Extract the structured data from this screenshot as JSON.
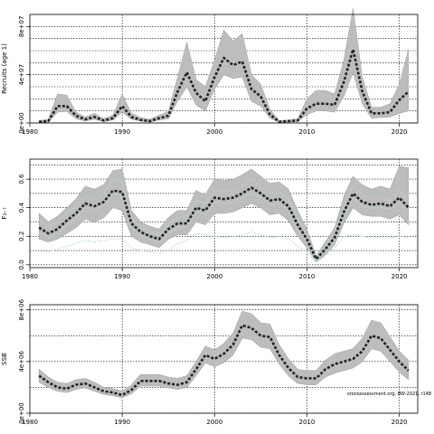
{
  "chart_data": [
    {
      "type": "line",
      "ylabel": "Recruits (age 1)",
      "xlim": [
        1980,
        2022
      ],
      "ylim": [
        0,
        90000000
      ],
      "x_ticks": [
        1980,
        1990,
        2000,
        2010,
        2020
      ],
      "y_ticks": [
        {
          "value": 0,
          "label": "0e+00"
        },
        {
          "value": 40000000,
          "label": "4e+07"
        },
        {
          "value": 80000000,
          "label": "8e+07"
        }
      ],
      "y_gridlines": [
        0,
        10000000,
        20000000,
        30000000,
        40000000,
        50000000,
        60000000,
        70000000,
        80000000
      ],
      "x_gridlines": [
        1990,
        2000,
        2010,
        2020
      ],
      "grid": true,
      "x": [
        1981,
        1982,
        1983,
        1984,
        1985,
        1986,
        1987,
        1988,
        1989,
        1990,
        1991,
        1992,
        1993,
        1994,
        1995,
        1996,
        1997,
        1998,
        1999,
        2000,
        2001,
        2002,
        2003,
        2004,
        2005,
        2006,
        2007,
        2008,
        2009,
        2010,
        2011,
        2012,
        2013,
        2014,
        2015,
        2016,
        2017,
        2018,
        2019,
        2020,
        2021
      ],
      "series": [
        {
          "role": "estimate",
          "values": [
            1000000,
            1500000,
            14000000,
            14000000,
            6000000,
            3000000,
            5000000,
            2000000,
            4000000,
            14000000,
            5000000,
            2500000,
            1500000,
            4000000,
            6000000,
            26000000,
            42000000,
            25000000,
            18000000,
            38000000,
            54000000,
            48000000,
            51000000,
            28000000,
            22000000,
            7000000,
            1000000,
            1500000,
            2000000,
            12000000,
            16000000,
            16000000,
            15000000,
            34000000,
            61000000,
            26000000,
            8000000,
            8000000,
            9000000,
            19000000,
            26000000
          ]
        },
        {
          "role": "lower",
          "values": [
            500000,
            800000,
            9000000,
            9500000,
            3500000,
            1500000,
            3000000,
            1000000,
            2500000,
            9000000,
            3000000,
            1500000,
            800000,
            2500000,
            3500000,
            18000000,
            30000000,
            15000000,
            10000000,
            28000000,
            40000000,
            37000000,
            38000000,
            18000000,
            14000000,
            4000000,
            500000,
            800000,
            1000000,
            7000000,
            10000000,
            10000000,
            9000000,
            22000000,
            42000000,
            16000000,
            4000000,
            4500000,
            5000000,
            8000000,
            10000000
          ]
        },
        {
          "role": "upper",
          "values": [
            2000000,
            3000000,
            24000000,
            23000000,
            9000000,
            5000000,
            8000000,
            3500000,
            6500000,
            24000000,
            8000000,
            4500000,
            3000000,
            6500000,
            9500000,
            38000000,
            67000000,
            36000000,
            30000000,
            52000000,
            77000000,
            68000000,
            74000000,
            40000000,
            32000000,
            11000000,
            2000000,
            2500000,
            3500000,
            20000000,
            27000000,
            27000000,
            24000000,
            52000000,
            95000000,
            38000000,
            13000000,
            13000000,
            16000000,
            32000000,
            61000000
          ]
        }
      ]
    },
    {
      "type": "line",
      "ylabel": "F₃₋₇",
      "xlim": [
        1980,
        2022
      ],
      "ylim": [
        -0.02,
        0.74
      ],
      "x_ticks": [
        1980,
        1990,
        2000,
        2010,
        2020
      ],
      "y_ticks": [
        {
          "value": 0.0,
          "label": "0.0"
        },
        {
          "value": 0.2,
          "label": "0.2"
        },
        {
          "value": 0.4,
          "label": "0.4"
        },
        {
          "value": 0.6,
          "label": "0.6"
        }
      ],
      "y_gridlines": [
        0.0,
        0.1,
        0.2,
        0.3,
        0.4,
        0.5,
        0.6,
        0.7
      ],
      "x_gridlines": [
        1990,
        2000,
        2010,
        2020
      ],
      "grid": true,
      "x": [
        1981,
        1982,
        1983,
        1984,
        1985,
        1986,
        1987,
        1988,
        1989,
        1990,
        1991,
        1992,
        1993,
        1994,
        1995,
        1996,
        1997,
        1998,
        1999,
        2000,
        2001,
        2002,
        2003,
        2004,
        2005,
        2006,
        2007,
        2008,
        2009,
        2010,
        2011,
        2012,
        2013,
        2014,
        2015,
        2016,
        2017,
        2018,
        2019,
        2020,
        2021
      ],
      "series": [
        {
          "role": "estimate",
          "values": [
            0.26,
            0.22,
            0.25,
            0.31,
            0.36,
            0.43,
            0.41,
            0.44,
            0.52,
            0.51,
            0.29,
            0.23,
            0.2,
            0.18,
            0.25,
            0.29,
            0.29,
            0.4,
            0.38,
            0.47,
            0.46,
            0.47,
            0.5,
            0.54,
            0.5,
            0.45,
            0.46,
            0.41,
            0.28,
            0.18,
            0.04,
            0.11,
            0.19,
            0.37,
            0.5,
            0.44,
            0.42,
            0.43,
            0.41,
            0.47,
            0.4
          ]
        },
        {
          "role": "lower",
          "values": [
            0.18,
            0.16,
            0.18,
            0.22,
            0.26,
            0.32,
            0.3,
            0.33,
            0.4,
            0.38,
            0.2,
            0.16,
            0.14,
            0.12,
            0.18,
            0.21,
            0.21,
            0.3,
            0.28,
            0.36,
            0.36,
            0.37,
            0.4,
            0.43,
            0.4,
            0.35,
            0.36,
            0.31,
            0.2,
            0.12,
            0.02,
            0.07,
            0.14,
            0.29,
            0.4,
            0.35,
            0.34,
            0.34,
            0.32,
            0.35,
            0.28
          ]
        },
        {
          "role": "upper",
          "values": [
            0.36,
            0.3,
            0.34,
            0.4,
            0.46,
            0.55,
            0.53,
            0.56,
            0.66,
            0.67,
            0.38,
            0.3,
            0.27,
            0.25,
            0.33,
            0.38,
            0.38,
            0.52,
            0.49,
            0.6,
            0.59,
            0.6,
            0.63,
            0.67,
            0.62,
            0.57,
            0.58,
            0.53,
            0.38,
            0.25,
            0.06,
            0.16,
            0.26,
            0.48,
            0.62,
            0.56,
            0.53,
            0.55,
            0.53,
            0.69,
            0.68
          ]
        },
        {
          "role": "light-lines",
          "color": "#b7d7e0",
          "lines": [
            [
              0.22,
              0.19,
              0.22,
              0.28,
              0.33,
              0.4,
              0.38,
              0.42,
              0.5,
              0.48,
              0.26,
              0.2,
              0.18,
              0.16,
              0.22,
              0.26,
              0.27,
              0.37,
              0.35,
              0.44,
              0.43,
              0.44,
              0.47,
              0.5,
              0.47,
              0.42,
              0.43,
              0.38,
              0.25,
              0.16,
              0.03,
              0.1,
              0.17,
              0.34,
              0.47,
              0.41,
              0.4,
              0.4,
              0.39,
              0.44,
              0.37
            ],
            [
              0.31,
              0.27,
              0.3,
              0.36,
              0.41,
              0.48,
              0.46,
              0.5,
              0.6,
              0.58,
              0.33,
              0.27,
              0.23,
              0.21,
              0.29,
              0.33,
              0.33,
              0.45,
              0.43,
              0.52,
              0.51,
              0.52,
              0.55,
              0.6,
              0.55,
              0.5,
              0.51,
              0.46,
              0.32,
              0.21,
              0.05,
              0.13,
              0.22,
              0.41,
              0.55,
              0.49,
              0.46,
              0.47,
              0.45,
              0.52,
              0.45
            ],
            [
              0.1,
              0.09,
              0.11,
              0.13,
              0.15,
              0.17,
              0.16,
              0.17,
              0.18,
              0.18,
              0.12,
              0.1,
              0.09,
              0.08,
              0.1,
              0.15,
              0.17,
              0.22,
              0.21,
              0.2,
              0.19,
              0.2,
              0.21,
              0.23,
              0.21,
              0.19,
              0.2,
              0.18,
              0.13,
              0.09,
              0.02,
              0.06,
              0.12,
              0.2,
              0.21,
              0.2,
              0.19,
              0.19,
              0.19,
              0.2,
              0.19
            ]
          ]
        }
      ]
    },
    {
      "type": "line",
      "ylabel": "SSB",
      "xlim": [
        1980,
        2022
      ],
      "ylim": [
        0,
        8400000
      ],
      "x_ticks": [
        1980,
        1990,
        2000,
        2010,
        2020
      ],
      "y_ticks": [
        {
          "value": 0,
          "label": "0e+00"
        },
        {
          "value": 4000000,
          "label": "4e+06"
        },
        {
          "value": 8000000,
          "label": "8e+06"
        }
      ],
      "y_gridlines": [
        0,
        2000000,
        4000000,
        6000000,
        8000000
      ],
      "x_gridlines": [
        1990,
        2000,
        2010,
        2020
      ],
      "grid": true,
      "annotation": "stockassessment.org, BW-2021, r148",
      "x": [
        1981,
        1982,
        1983,
        1984,
        1985,
        1986,
        1987,
        1988,
        1989,
        1990,
        1991,
        1992,
        1993,
        1994,
        1995,
        1996,
        1997,
        1998,
        1999,
        2000,
        2001,
        2002,
        2003,
        2004,
        2005,
        2006,
        2007,
        2008,
        2009,
        2010,
        2011,
        2012,
        2013,
        2014,
        2015,
        2016,
        2017,
        2018,
        2019,
        2020,
        2021
      ],
      "series": [
        {
          "role": "estimate",
          "values": [
            2900000,
            2400000,
            2000000,
            1900000,
            2200000,
            2300000,
            2000000,
            1700000,
            1600000,
            1400000,
            1800000,
            2500000,
            2500000,
            2500000,
            2300000,
            2200000,
            2400000,
            3400000,
            4500000,
            4200000,
            4600000,
            5300000,
            6800000,
            6600000,
            6000000,
            5900000,
            4500000,
            3500000,
            2800000,
            2700000,
            2700000,
            3400000,
            3800000,
            4000000,
            4200000,
            4800000,
            6000000,
            5800000,
            4900000,
            4000000,
            3300000
          ]
        },
        {
          "role": "lower",
          "values": [
            2400000,
            2000000,
            1700000,
            1600000,
            1850000,
            1950000,
            1700000,
            1450000,
            1350000,
            1200000,
            1500000,
            2100000,
            2100000,
            2100000,
            1950000,
            1850000,
            2000000,
            2900000,
            3900000,
            3600000,
            3900000,
            4500000,
            5800000,
            5700000,
            5100000,
            5000000,
            3800000,
            2900000,
            2300000,
            2200000,
            2200000,
            2800000,
            3100000,
            3300000,
            3500000,
            4000000,
            5000000,
            4800000,
            4000000,
            3200000,
            2600000
          ]
        },
        {
          "role": "upper",
          "values": [
            3400000,
            2800000,
            2400000,
            2300000,
            2600000,
            2700000,
            2400000,
            2000000,
            1900000,
            1700000,
            2200000,
            3000000,
            3000000,
            3000000,
            2800000,
            2700000,
            2900000,
            4000000,
            5200000,
            4900000,
            5400000,
            6200000,
            7900000,
            7700000,
            7000000,
            6900000,
            5300000,
            4200000,
            3400000,
            3300000,
            3300000,
            4100000,
            4600000,
            4800000,
            5000000,
            5800000,
            7200000,
            7000000,
            5900000,
            4800000,
            4100000
          ]
        }
      ]
    }
  ]
}
